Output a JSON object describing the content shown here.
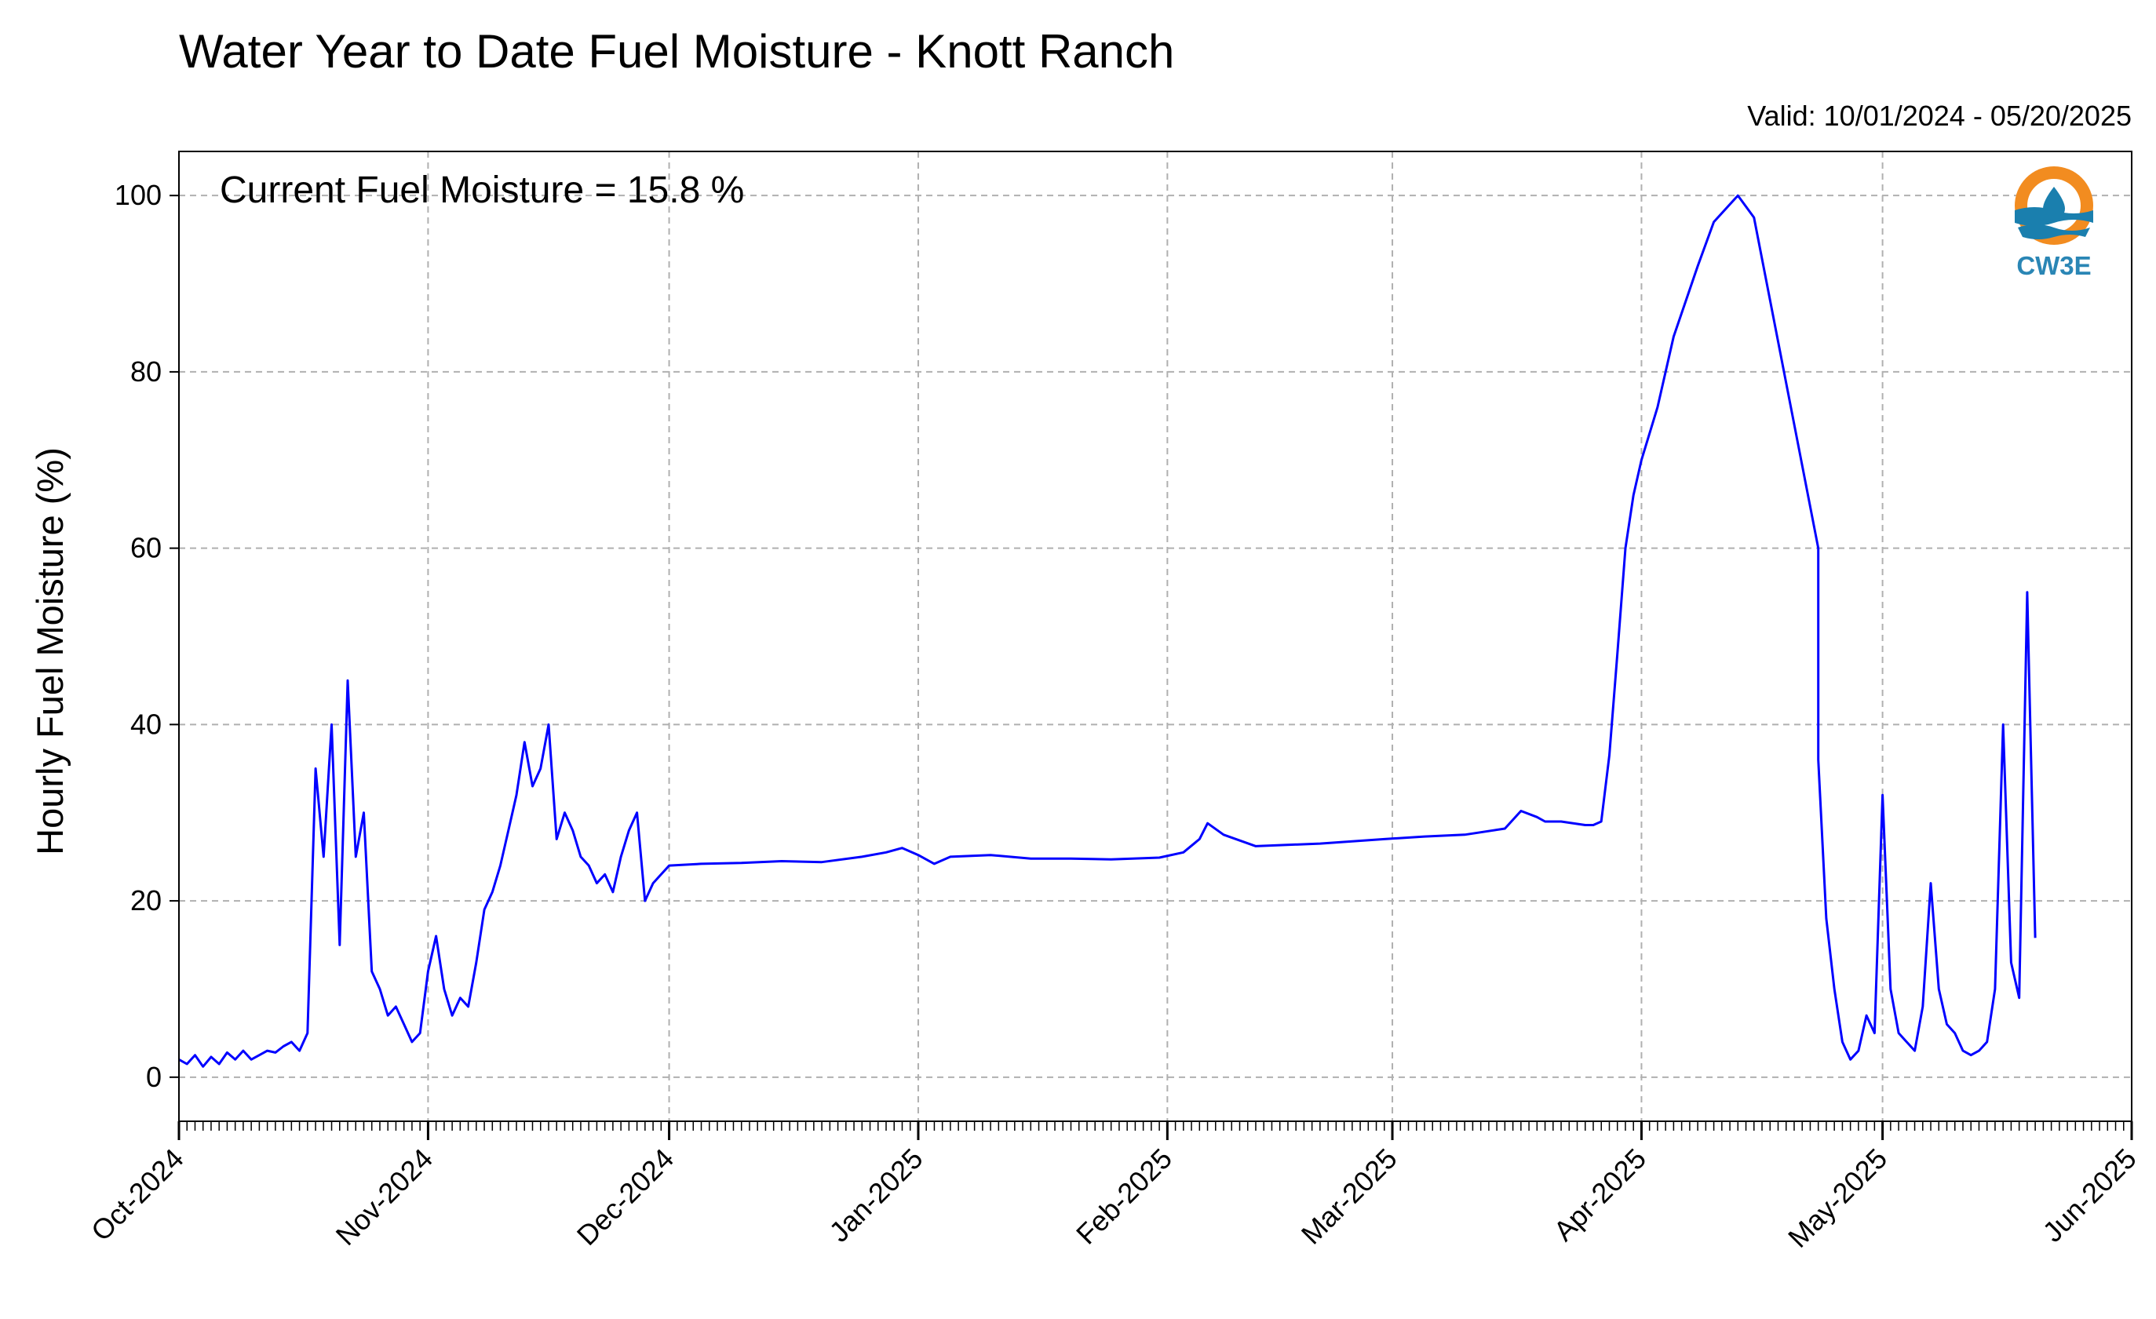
{
  "chart_data": {
    "type": "line",
    "title": "Water Year to Date Fuel Moisture - Knott Ranch",
    "subtitle": "Valid: 10/01/2024 - 05/20/2025",
    "xlabel": "",
    "ylabel": "Hourly Fuel Moisture (%)",
    "annotation": "Current Fuel Moisture = 15.8 %",
    "xlim": [
      "2024-10-01",
      "2025-06-01"
    ],
    "ylim": [
      -5,
      105
    ],
    "yticks": [
      0,
      20,
      40,
      60,
      80,
      100
    ],
    "xticks": [
      {
        "date": "2024-10-01",
        "label": "Oct-2024"
      },
      {
        "date": "2024-11-01",
        "label": "Nov-2024"
      },
      {
        "date": "2024-12-01",
        "label": "Dec-2024"
      },
      {
        "date": "2025-01-01",
        "label": "Jan-2025"
      },
      {
        "date": "2025-02-01",
        "label": "Feb-2025"
      },
      {
        "date": "2025-03-01",
        "label": "Mar-2025"
      },
      {
        "date": "2025-04-01",
        "label": "Apr-2025"
      },
      {
        "date": "2025-05-01",
        "label": "May-2025"
      },
      {
        "date": "2025-06-01",
        "label": "Jun-2025"
      }
    ],
    "grid": true,
    "line_color": "#0000ff",
    "series": [
      {
        "x": [
          "2024-10-01",
          "2024-10-02",
          "2024-10-03",
          "2024-10-04",
          "2024-10-05",
          "2024-10-06",
          "2024-10-07",
          "2024-10-08",
          "2024-10-09",
          "2024-10-10",
          "2024-10-11",
          "2024-10-12",
          "2024-10-13",
          "2024-10-14",
          "2024-10-15",
          "2024-10-16",
          "2024-10-17",
          "2024-10-18",
          "2024-10-19",
          "2024-10-20",
          "2024-10-21",
          "2024-10-22",
          "2024-10-23",
          "2024-10-24",
          "2024-10-25",
          "2024-10-26",
          "2024-10-27",
          "2024-10-28",
          "2024-10-29",
          "2024-10-30",
          "2024-10-31",
          "2024-11-01",
          "2024-11-02",
          "2024-11-03",
          "2024-11-04",
          "2024-11-05",
          "2024-11-06",
          "2024-11-07",
          "2024-11-08",
          "2024-11-09",
          "2024-11-10",
          "2024-11-11",
          "2024-11-12",
          "2024-11-13",
          "2024-11-14",
          "2024-11-15",
          "2024-11-16",
          "2024-11-17",
          "2024-11-18",
          "2024-11-19",
          "2024-11-20",
          "2024-11-21",
          "2024-11-22",
          "2024-11-23",
          "2024-11-24",
          "2024-11-25",
          "2024-11-26",
          "2024-11-27",
          "2024-11-28",
          "2024-11-29",
          "2024-11-30",
          "2024-12-01",
          "2024-12-05",
          "2024-12-10",
          "2024-12-15",
          "2024-12-20",
          "2024-12-25",
          "2024-12-28",
          "2024-12-30",
          "2025-01-01",
          "2025-01-03",
          "2025-01-05",
          "2025-01-10",
          "2025-01-15",
          "2025-01-20",
          "2025-01-25",
          "2025-01-31",
          "2025-02-03",
          "2025-02-05",
          "2025-02-06",
          "2025-02-08",
          "2025-02-12",
          "2025-02-20",
          "2025-02-28",
          "2025-03-05",
          "2025-03-10",
          "2025-03-15",
          "2025-03-17",
          "2025-03-19",
          "2025-03-20",
          "2025-03-22",
          "2025-03-25",
          "2025-03-26",
          "2025-03-27",
          "2025-03-28",
          "2025-03-29",
          "2025-03-30",
          "2025-03-31",
          "2025-04-01",
          "2025-04-03",
          "2025-04-05",
          "2025-04-08",
          "2025-04-10",
          "2025-04-13",
          "2025-04-15",
          "2025-04-23",
          "2025-04-23",
          "2025-04-24",
          "2025-04-25",
          "2025-04-26",
          "2025-04-27",
          "2025-04-28",
          "2025-04-29",
          "2025-04-30",
          "2025-05-01",
          "2025-05-02",
          "2025-05-03",
          "2025-05-04",
          "2025-05-05",
          "2025-05-06",
          "2025-05-07",
          "2025-05-08",
          "2025-05-09",
          "2025-05-10",
          "2025-05-11",
          "2025-05-12",
          "2025-05-13",
          "2025-05-14",
          "2025-05-15",
          "2025-05-16",
          "2025-05-17",
          "2025-05-18",
          "2025-05-19",
          "2025-05-20"
        ],
        "y": [
          2,
          1.5,
          2.5,
          1.2,
          2.3,
          1.5,
          2.8,
          2,
          3,
          2,
          2.5,
          3,
          2.8,
          3.5,
          4,
          3,
          5,
          35,
          25,
          40,
          15,
          45,
          25,
          30,
          12,
          10,
          7,
          8,
          6,
          4,
          5,
          12,
          16,
          10,
          7,
          9,
          8,
          13,
          19,
          21,
          24,
          28,
          32,
          38,
          33,
          35,
          40,
          27,
          30,
          28,
          25,
          24,
          22,
          23,
          21,
          25,
          28,
          30,
          20,
          22,
          23,
          24,
          24.2,
          24.3,
          24.5,
          24.4,
          25,
          25.5,
          26,
          25.2,
          24.2,
          25,
          25.2,
          24.8,
          24.8,
          24.7,
          24.9,
          25.5,
          27,
          28.8,
          27.5,
          26.2,
          26.5,
          27,
          27.3,
          27.5,
          28.2,
          30.2,
          29.5,
          29,
          29,
          28.6,
          28.6,
          29,
          36.5,
          48,
          60,
          66,
          70,
          76,
          84,
          92,
          97,
          100,
          97.5,
          60,
          36,
          18,
          10,
          4,
          2,
          3,
          7,
          5,
          32,
          10,
          5,
          4,
          3,
          8,
          22,
          10,
          6,
          5,
          3,
          2.5,
          3,
          4,
          10,
          40,
          13,
          9,
          55,
          15.8
        ]
      }
    ]
  },
  "logo": {
    "text": "CW3E",
    "ring_color": "#f28c20",
    "wave_color": "#1a7fae"
  }
}
